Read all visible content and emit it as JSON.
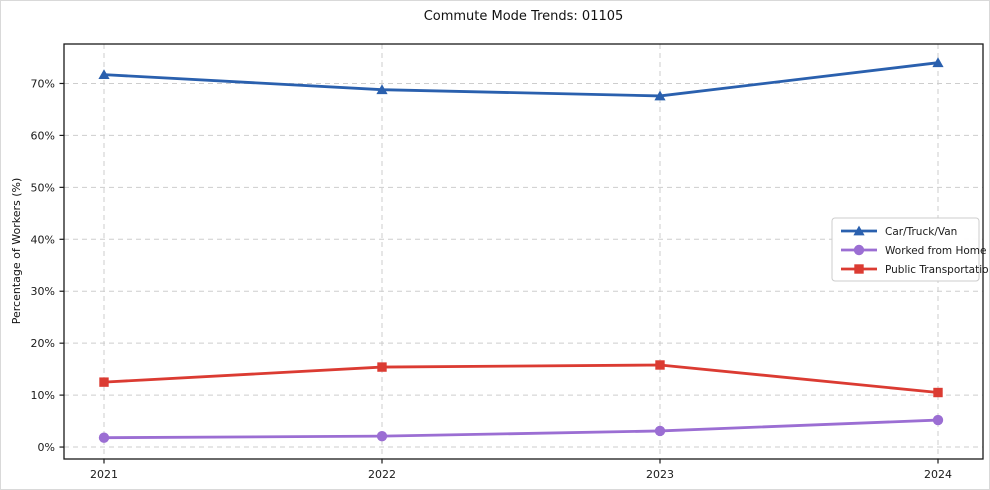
{
  "chart_data": {
    "type": "line",
    "title": "Commute Mode Trends: 01105",
    "xlabel": "",
    "ylabel": "Percentage of Workers (%)",
    "categories": [
      "2021",
      "2022",
      "2023",
      "2024"
    ],
    "series": [
      {
        "name": "Car/Truck/Van",
        "values": [
          71.7,
          68.8,
          67.6,
          74.0
        ],
        "color": "#2a60ae",
        "marker": "triangle-up"
      },
      {
        "name": "Worked from Home",
        "values": [
          1.8,
          2.1,
          3.1,
          5.2
        ],
        "color": "#9b6ed3",
        "marker": "circle"
      },
      {
        "name": "Public Transportation",
        "values": [
          12.5,
          15.4,
          15.8,
          10.5
        ],
        "color": "#db3b32",
        "marker": "square"
      }
    ],
    "ylim": [
      -2.3,
      77.6
    ],
    "yticks": {
      "values": [
        0,
        10,
        20,
        30,
        40,
        50,
        60,
        70
      ],
      "labels": [
        "0%",
        "10%",
        "20%",
        "30%",
        "40%",
        "50%",
        "60%",
        "70%"
      ]
    },
    "grid": true,
    "legend": {
      "position": "center-right"
    }
  }
}
